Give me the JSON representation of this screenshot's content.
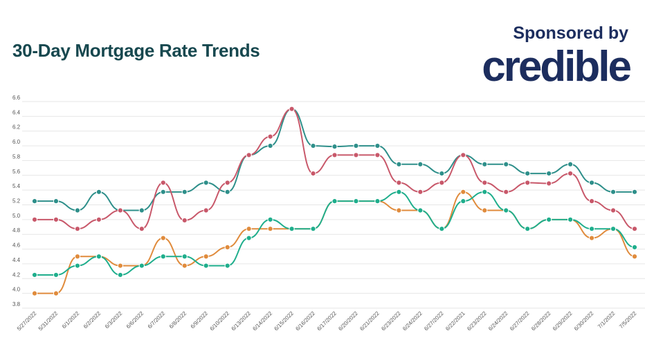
{
  "header": {
    "title": "30-Day Mortgage Rate Trends",
    "sponsor_label": "Sponsored by",
    "sponsor_logo": "credible"
  },
  "colors": {
    "title": "#17484f",
    "logo": "#1c2d5e",
    "grid": "#e6e6e6"
  },
  "chart_data": {
    "type": "line",
    "title": "30-Day Mortgage Rate Trends",
    "xlabel": "",
    "ylabel": "",
    "ylim": [
      3.8,
      6.6
    ],
    "yticks": [
      "6.6",
      "6.4",
      "6.2",
      "6.0",
      "5.8",
      "5.6",
      "5.4",
      "5.2",
      "5.0",
      "4.8",
      "4.6",
      "4.4",
      "4.2",
      "4.0",
      "3.8"
    ],
    "grid": true,
    "legend": "none",
    "smooth": true,
    "categories": [
      "5/27/2022",
      "5/31/2022",
      "6/1/2022",
      "6/2/2022",
      "6/3/2022",
      "6/6/2022",
      "6/7/2022",
      "6/8/2022",
      "6/9/2022",
      "6/10/2022",
      "6/13/2022",
      "6/14/2022",
      "6/15/2022",
      "6/16/2022",
      "6/17/2022",
      "6/20/2022",
      "6/21/2022",
      "6/23/2022",
      "6/24/2022",
      "6/27/2022",
      "6/22/2021",
      "6/23/2022",
      "6/24/2022",
      "6/27/2022",
      "6/28/2022",
      "6/29/2022",
      "6/30/2022",
      "7/1/2022",
      "7/5/2022"
    ],
    "series": [
      {
        "color": "#2e8f8a",
        "values": [
          5.25,
          5.25,
          5.125,
          5.375,
          5.125,
          5.125,
          5.375,
          5.375,
          5.5,
          5.375,
          5.875,
          6.0,
          6.5,
          6.0,
          5.99,
          6.0,
          6.0,
          5.75,
          5.75,
          5.625,
          5.875,
          5.75,
          5.75,
          5.625,
          5.625,
          5.75,
          5.5,
          5.375,
          5.375
        ]
      },
      {
        "color": "#c8586a",
        "values": [
          5.0,
          5.0,
          4.875,
          5.0,
          5.125,
          4.875,
          5.5,
          4.99,
          5.125,
          5.5,
          5.875,
          6.125,
          6.5,
          5.625,
          5.875,
          5.875,
          5.875,
          5.5,
          5.375,
          5.5,
          5.875,
          5.5,
          5.375,
          5.5,
          5.49,
          5.625,
          5.25,
          5.125,
          4.875
        ]
      },
      {
        "color": "#e08b3c",
        "values": [
          4.0,
          4.0,
          4.5,
          4.5,
          4.375,
          4.375,
          4.75,
          4.375,
          4.5,
          4.625,
          4.875,
          4.875,
          4.875,
          4.875,
          5.25,
          5.25,
          5.25,
          5.125,
          5.125,
          4.875,
          5.375,
          5.125,
          5.125,
          4.875,
          5.0,
          5.0,
          4.75,
          4.875,
          4.5
        ]
      },
      {
        "color": "#1fae8c",
        "values": [
          4.25,
          4.25,
          4.375,
          4.5,
          4.25,
          4.375,
          4.5,
          4.5,
          4.375,
          4.375,
          4.75,
          5.0,
          4.875,
          4.875,
          5.25,
          5.25,
          5.25,
          5.375,
          5.125,
          4.875,
          5.25,
          5.375,
          5.125,
          4.875,
          5.0,
          5.0,
          4.875,
          4.875,
          4.625
        ]
      }
    ]
  }
}
